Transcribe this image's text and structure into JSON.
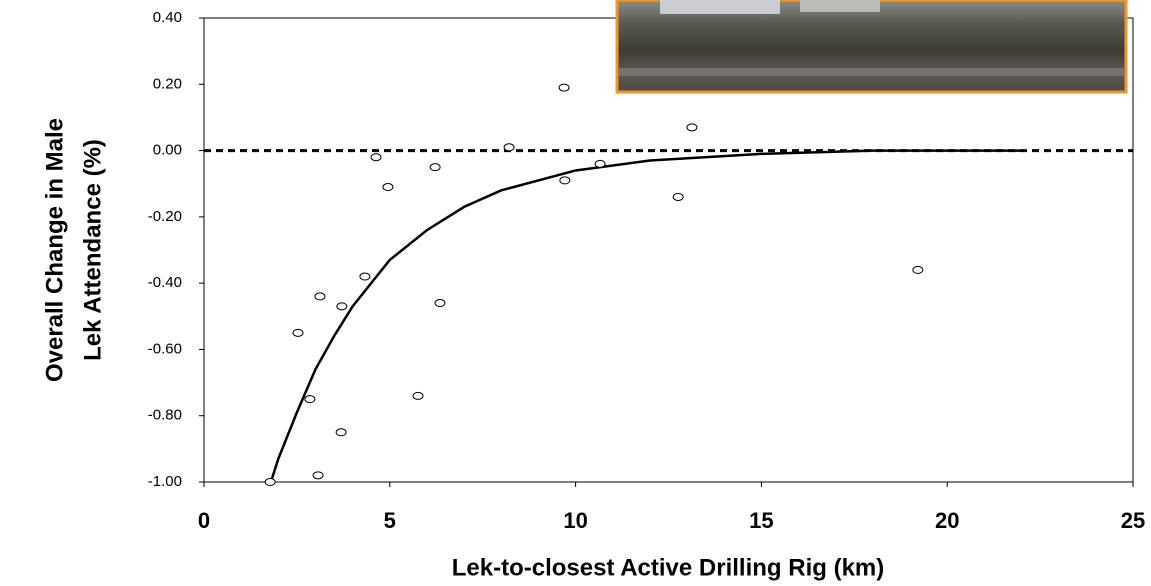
{
  "chart_data": {
    "type": "scatter",
    "x_label": "Lek-to-closest Active Drilling Rig (km)",
    "y_label": [
      "Overall Change in Male",
      "Lek Attendance (%)"
    ],
    "xlim": [
      0,
      25
    ],
    "xticks": [
      0,
      5,
      10,
      15,
      20,
      25
    ],
    "ylim": [
      -1.0,
      0.4
    ],
    "yticks": [
      {
        "value": -1.0,
        "label": "-1.00"
      },
      {
        "value": -0.8,
        "label": "-0.80"
      },
      {
        "value": -0.6,
        "label": "-0.60"
      },
      {
        "value": -0.4,
        "label": "-0.40"
      },
      {
        "value": -0.2,
        "label": "-0.20"
      },
      {
        "value": 0,
        "label": "0.00"
      },
      {
        "value": 0.2,
        "label": "0.20"
      },
      {
        "value": 0.4,
        "label": "0.40"
      }
    ],
    "reference_line": 0,
    "series": [
      {
        "color": "#000000",
        "x": [
          1.78,
          2.53,
          2.85,
          3.12,
          3.07,
          3.71,
          3.69,
          4.33,
          4.63,
          4.95,
          5.76,
          6.22,
          6.35,
          8.21,
          9.69,
          9.71,
          10.66,
          12.76,
          13.13,
          19.21
        ],
        "values": [
          -1.0,
          -0.55,
          -0.75,
          -0.44,
          -0.98,
          -0.47,
          -0.85,
          -0.38,
          -0.02,
          -0.11,
          -0.74,
          -0.05,
          -0.46,
          0.01,
          0.19,
          -0.09,
          -0.04,
          -0.14,
          0.07,
          -0.36
        ]
      }
    ],
    "fit": {
      "color": "#000000",
      "x": [
        1.8,
        2,
        2.5,
        3,
        3.5,
        4,
        5,
        6,
        7,
        8,
        10,
        12,
        15,
        18,
        22
      ],
      "values": [
        -1.0,
        -0.93,
        -0.79,
        -0.66,
        -0.56,
        -0.47,
        -0.33,
        -0.24,
        -0.17,
        -0.12,
        -0.06,
        -0.03,
        -0.01,
        0,
        0
      ]
    }
  }
}
